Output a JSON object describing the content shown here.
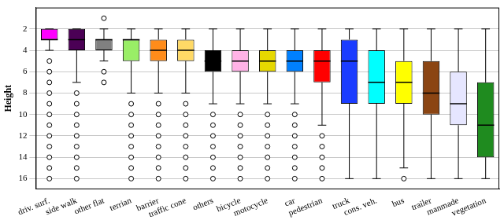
{
  "chart_data": {
    "type": "boxplot",
    "y_label": "Height",
    "categories": [
      "driv. surf.",
      "side walk",
      "other flat",
      "terrian",
      "barrier",
      "traffic cone",
      "others",
      "bicycle",
      "motocycle",
      "car",
      "pedestrian",
      "truck",
      "cons. veh.",
      "bus",
      "trailer",
      "manmade",
      "vegetation"
    ],
    "colors": [
      "#ff00ff",
      "#4b0055",
      "#808080",
      "#99ee66",
      "#ff8c1a",
      "#ffd966",
      "#000000",
      "#ffb3e6",
      "#e6d800",
      "#0080ff",
      "#ff0000",
      "#1a3cff",
      "#00ffff",
      "#ffff00",
      "#8b4513",
      "#e6e6ff",
      "#1f8b1f"
    ],
    "boxes": [
      {
        "min": 2,
        "q1": 2,
        "median": 3,
        "q3": 3,
        "max": 4,
        "outliers": [
          5,
          6,
          7,
          8,
          9,
          10,
          11,
          12,
          13,
          14,
          15,
          16
        ]
      },
      {
        "min": 2,
        "q1": 2,
        "median": 3,
        "q3": 4,
        "max": 7,
        "outliers": [
          8,
          9,
          10,
          11,
          12,
          13,
          14,
          15,
          16
        ]
      },
      {
        "min": 2,
        "q1": 3,
        "median": 3,
        "q3": 4,
        "max": 5,
        "outliers": [
          1,
          6,
          7
        ]
      },
      {
        "min": 2,
        "q1": 3,
        "median": 3,
        "q3": 5,
        "max": 8,
        "outliers": [
          9,
          10,
          11,
          12,
          13,
          14,
          15,
          16
        ]
      },
      {
        "min": 2,
        "q1": 3,
        "median": 4,
        "q3": 5,
        "max": 8,
        "outliers": [
          9,
          10,
          11,
          12,
          13,
          14,
          15,
          16
        ]
      },
      {
        "min": 2,
        "q1": 3,
        "median": 4,
        "q3": 5,
        "max": 8,
        "outliers": [
          9,
          10,
          11,
          12,
          13,
          14,
          15,
          16
        ]
      },
      {
        "min": 2,
        "q1": 4,
        "median": 5,
        "q3": 6,
        "max": 9,
        "outliers": [
          10,
          11,
          12,
          13,
          14,
          15,
          16
        ]
      },
      {
        "min": 2,
        "q1": 4,
        "median": 5,
        "q3": 6,
        "max": 9,
        "outliers": [
          10,
          11,
          12,
          13,
          14,
          15,
          16
        ]
      },
      {
        "min": 2,
        "q1": 4,
        "median": 5,
        "q3": 6,
        "max": 9,
        "outliers": [
          10,
          11,
          12,
          13,
          14,
          15,
          16
        ]
      },
      {
        "min": 2,
        "q1": 4,
        "median": 5,
        "q3": 6,
        "max": 9,
        "outliers": [
          10,
          11,
          12,
          13,
          14,
          15,
          16
        ]
      },
      {
        "min": 2,
        "q1": 4,
        "median": 5,
        "q3": 7,
        "max": 11,
        "outliers": [
          12,
          13,
          14,
          15,
          16
        ]
      },
      {
        "min": 2,
        "q1": 3,
        "median": 5,
        "q3": 9,
        "max": 16,
        "outliers": []
      },
      {
        "min": 2,
        "q1": 4,
        "median": 7,
        "q3": 9,
        "max": 16,
        "outliers": []
      },
      {
        "min": 2,
        "q1": 5,
        "median": 7,
        "q3": 9,
        "max": 15,
        "outliers": [
          16
        ]
      },
      {
        "min": 2,
        "q1": 5,
        "median": 8,
        "q3": 10,
        "max": 16,
        "outliers": []
      },
      {
        "min": 2,
        "q1": 6,
        "median": 9,
        "q3": 11,
        "max": 16,
        "outliers": []
      },
      {
        "min": 2,
        "q1": 7,
        "median": 11,
        "q3": 14,
        "max": 16,
        "outliers": []
      }
    ],
    "ylim": [
      17,
      0
    ],
    "yticks": [
      2,
      4,
      6,
      8,
      10,
      12,
      14,
      16
    ],
    "grid": true
  }
}
